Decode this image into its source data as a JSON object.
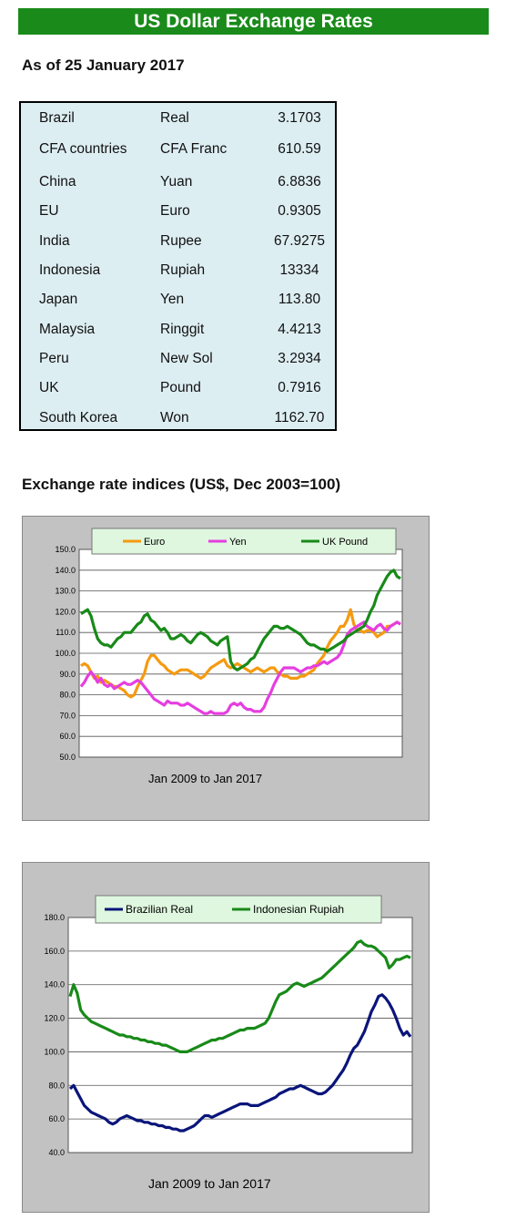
{
  "header": {
    "title": "US Dollar Exchange Rates",
    "as_of": "As of 25 January 2017"
  },
  "rates_table": {
    "rows": [
      {
        "country": "Brazil",
        "currency": "Real",
        "rate": "3.1703"
      },
      {
        "country": "CFA countries",
        "currency": "CFA Franc",
        "rate": "610.59"
      },
      {
        "country": "China",
        "currency": "Yuan",
        "rate": "6.8836"
      },
      {
        "country": "EU",
        "currency": "Euro",
        "rate": "0.9305"
      },
      {
        "country": "India",
        "currency": "Rupee",
        "rate": "67.9275"
      },
      {
        "country": "Indonesia",
        "currency": "Rupiah",
        "rate": "13334"
      },
      {
        "country": "Japan",
        "currency": "Yen",
        "rate": "113.80"
      },
      {
        "country": "Malaysia",
        "currency": "Ringgit",
        "rate": "4.4213"
      },
      {
        "country": "Peru",
        "currency": "New Sol",
        "rate": "3.2934"
      },
      {
        "country": "UK",
        "currency": "Pound",
        "rate": "0.7916"
      },
      {
        "country": "South Korea",
        "currency": "Won",
        "rate": "1162.70"
      }
    ]
  },
  "indices_section": {
    "title": "Exchange rate indices (US$, Dec 2003=100)"
  },
  "chart_data": [
    {
      "type": "line",
      "caption": "Jan 2009 to Jan 2017",
      "ylim": [
        50,
        150
      ],
      "yticks": [
        "50.0",
        "60.0",
        "70.0",
        "80.0",
        "90.0",
        "100.0",
        "110.0",
        "120.0",
        "130.0",
        "140.0",
        "150.0"
      ],
      "grid": true,
      "legend_position": "top",
      "plot_bg": "#ffffff",
      "frame_bg": "#c2c2c2",
      "legend_bg": "#dff7df",
      "x_points": 97,
      "series": [
        {
          "name": "Euro",
          "color": "#f59a10",
          "values": [
            94,
            95,
            94,
            91,
            88,
            89,
            86,
            87,
            86,
            85,
            84,
            84,
            83,
            82,
            80,
            79,
            80,
            84,
            87,
            90,
            96,
            99,
            99,
            97,
            95,
            94,
            92,
            91,
            90,
            91,
            92,
            92,
            92,
            91,
            90,
            89,
            88,
            89,
            91,
            93,
            94,
            95,
            96,
            97,
            94,
            93,
            94,
            95,
            94,
            93,
            92,
            91,
            92,
            93,
            92,
            91,
            92,
            93,
            93,
            91,
            90,
            89,
            89,
            88,
            88,
            88,
            89,
            89,
            90,
            91,
            92,
            95,
            97,
            99,
            103,
            106,
            108,
            110,
            113,
            113,
            116,
            121,
            114,
            111,
            111,
            110,
            111,
            111,
            110,
            108,
            109,
            110,
            113,
            113,
            114,
            115,
            114
          ]
        },
        {
          "name": "Yen",
          "color": "#e53ee0",
          "values": [
            84,
            86,
            89,
            91,
            89,
            86,
            88,
            85,
            84,
            85,
            83,
            84,
            85,
            86,
            85,
            85,
            86,
            87,
            86,
            84,
            82,
            80,
            78,
            77,
            76,
            75,
            77,
            76,
            76,
            76,
            75,
            75,
            76,
            75,
            74,
            73,
            72,
            71,
            71,
            72,
            71,
            71,
            71,
            71,
            72,
            75,
            76,
            75,
            76,
            74,
            73,
            73,
            72,
            72,
            72,
            74,
            78,
            81,
            85,
            88,
            91,
            93,
            93,
            93,
            93,
            92,
            91,
            92,
            93,
            93,
            94,
            94,
            95,
            96,
            95,
            96,
            97,
            98,
            100,
            104,
            109,
            111,
            112,
            113,
            114,
            115,
            113,
            112,
            111,
            113,
            114,
            112,
            111,
            113,
            114,
            115,
            114
          ]
        },
        {
          "name": "UK Pound",
          "color": "#188a18",
          "values": [
            119,
            120,
            121,
            118,
            112,
            107,
            105,
            104,
            104,
            103,
            105,
            107,
            108,
            110,
            110,
            110,
            112,
            114,
            115,
            118,
            119,
            116,
            115,
            113,
            111,
            112,
            110,
            107,
            107,
            108,
            109,
            108,
            106,
            105,
            107,
            109,
            110,
            109,
            108,
            106,
            105,
            104,
            106,
            107,
            108,
            96,
            93,
            92,
            93,
            94,
            95,
            97,
            98,
            101,
            104,
            107,
            109,
            111,
            113,
            113,
            112,
            112,
            113,
            112,
            111,
            110,
            109,
            107,
            105,
            104,
            104,
            103,
            102,
            102,
            101,
            102,
            103,
            104,
            105,
            106,
            108,
            109,
            110,
            111,
            112,
            113,
            116,
            120,
            123,
            128,
            131,
            134,
            137,
            139,
            140,
            137,
            136
          ]
        }
      ]
    },
    {
      "type": "line",
      "caption": "Jan 2009 to Jan 2017",
      "ylim": [
        40,
        180
      ],
      "yticks": [
        "40.0",
        "60.0",
        "80.0",
        "100.0",
        "120.0",
        "140.0",
        "160.0",
        "180.0"
      ],
      "grid": true,
      "legend_position": "top",
      "plot_bg": "#ffffff",
      "frame_bg": "#c2c2c2",
      "legend_bg": "#dff7df",
      "x_points": 97,
      "series": [
        {
          "name": "Brazilian Real",
          "color": "#0a157a",
          "values": [
            78,
            80,
            76,
            72,
            68,
            66,
            64,
            63,
            62,
            61,
            60,
            58,
            57,
            58,
            60,
            61,
            62,
            61,
            60,
            59,
            59,
            58,
            58,
            57,
            57,
            56,
            56,
            55,
            55,
            54,
            54,
            53,
            53,
            54,
            55,
            56,
            58,
            60,
            62,
            62,
            61,
            62,
            63,
            64,
            65,
            66,
            67,
            68,
            69,
            69,
            69,
            68,
            68,
            68,
            69,
            70,
            71,
            72,
            73,
            75,
            76,
            77,
            78,
            78,
            79,
            80,
            79,
            78,
            77,
            76,
            75,
            75,
            76,
            78,
            80,
            83,
            86,
            89,
            93,
            98,
            102,
            104,
            108,
            112,
            118,
            124,
            128,
            133,
            134,
            132,
            129,
            125,
            120,
            114,
            110,
            112,
            109
          ]
        },
        {
          "name": "Indonesian Rupiah",
          "color": "#188a18",
          "values": [
            133,
            140,
            135,
            125,
            122,
            120,
            118,
            117,
            116,
            115,
            114,
            113,
            112,
            111,
            110,
            110,
            109,
            109,
            108,
            108,
            107,
            107,
            106,
            106,
            105,
            105,
            104,
            104,
            103,
            102,
            101,
            100,
            100,
            100,
            101,
            102,
            103,
            104,
            105,
            106,
            107,
            107,
            108,
            108,
            109,
            110,
            111,
            112,
            113,
            113,
            114,
            114,
            114,
            115,
            116,
            117,
            120,
            125,
            130,
            134,
            135,
            136,
            138,
            140,
            141,
            140,
            139,
            140,
            141,
            142,
            143,
            144,
            146,
            148,
            150,
            152,
            154,
            156,
            158,
            160,
            162,
            165,
            166,
            164,
            163,
            163,
            162,
            160,
            158,
            156,
            150,
            152,
            155,
            155,
            156,
            157,
            156
          ]
        }
      ]
    }
  ]
}
